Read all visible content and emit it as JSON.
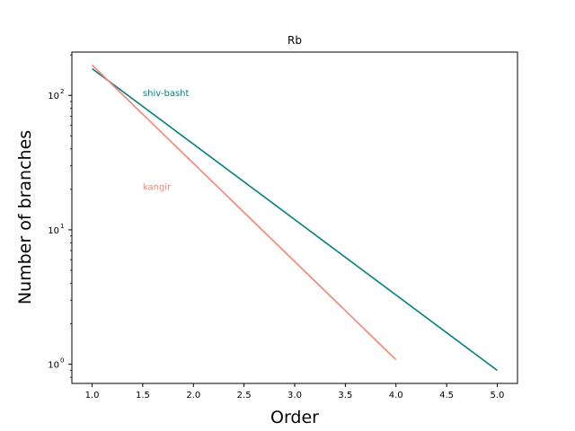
{
  "chart_data": {
    "type": "line",
    "title": "Rb",
    "xlabel": "Order",
    "ylabel": "Number of branches",
    "yscale": "log",
    "xlim": [
      0.8,
      5.2
    ],
    "ylim": [
      0.72,
      210
    ],
    "grid": false,
    "x_ticks": [
      1.0,
      1.5,
      2.0,
      2.5,
      3.0,
      3.5,
      4.0,
      4.5,
      5.0
    ],
    "x_tick_labels": [
      "1.0",
      "1.5",
      "2.0",
      "2.5",
      "3.0",
      "3.5",
      "4.0",
      "4.5",
      "5.0"
    ],
    "y_ticks": [
      1,
      10,
      100
    ],
    "y_tick_labels": [
      "10",
      "10",
      "10"
    ],
    "y_tick_exponents": [
      "0",
      "1",
      "2"
    ],
    "series": [
      {
        "name": "shiv-basht",
        "color": "#008080",
        "x": [
          1,
          5
        ],
        "y": [
          158,
          0.9
        ],
        "label_at": [
          1.5,
          105
        ]
      },
      {
        "name": "kangir",
        "color": "#fa8072",
        "x": [
          1,
          4
        ],
        "y": [
          168,
          1.08
        ],
        "label_at": [
          1.5,
          21
        ]
      }
    ]
  }
}
